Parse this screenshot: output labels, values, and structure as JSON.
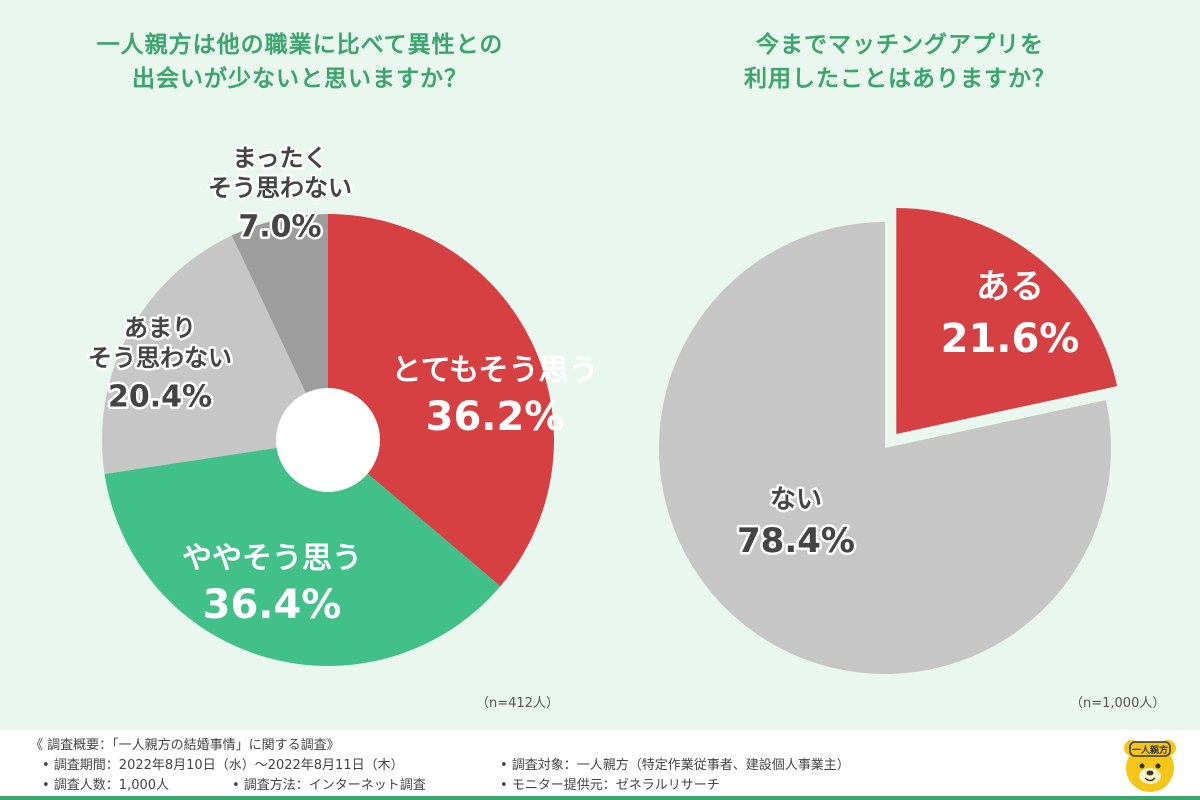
{
  "chart_data": [
    {
      "type": "pie",
      "title": "一人親方は他の職業に比べて異性との出会いが少ないと思いますか？",
      "title_lines": [
        "一人親方は他の職業に比べて異性との",
        "出会いが少ないと思いますか？"
      ],
      "sample_note": "（n=412人）",
      "donut": true,
      "slices": [
        {
          "label_lines": [
            "とてもそう思う"
          ],
          "value": 36.2,
          "value_text": "36.2%",
          "color": "#d64042",
          "text_style": "white"
        },
        {
          "label_lines": [
            "ややそう思う"
          ],
          "value": 36.4,
          "value_text": "36.4%",
          "color": "#41c08a",
          "text_style": "white"
        },
        {
          "label_lines": [
            "あまり",
            "そう思わない"
          ],
          "value": 20.4,
          "value_text": "20.4%",
          "color": "#c6c6c6",
          "text_style": "dark"
        },
        {
          "label_lines": [
            "まったく",
            "そう思わない"
          ],
          "value": 7.0,
          "value_text": "7.0%",
          "color": "#9d9d9d",
          "text_style": "dark"
        }
      ]
    },
    {
      "type": "pie",
      "title": "今までマッチングアプリを利用したことはありますか？",
      "title_lines": [
        "今までマッチングアプリを",
        "利用したことはありますか？"
      ],
      "sample_note": "（n=1,000人）",
      "donut": false,
      "slices": [
        {
          "label_lines": [
            "ある"
          ],
          "value": 21.6,
          "value_text": "21.6%",
          "color": "#d64042",
          "text_style": "white",
          "exploded": true
        },
        {
          "label_lines": [
            "ない"
          ],
          "value": 78.4,
          "value_text": "78.4%",
          "color": "#c6c6c6",
          "text_style": "dark"
        }
      ]
    }
  ],
  "footer": {
    "summary": "《 調査概要：「一人親方の結婚事情」に関する調査》",
    "period": "• 調査期間：2022年8月10日（水）〜2022年8月11日（木）",
    "count": "• 調査人数：1,000人",
    "method": "• 調査方法：インターネット調査",
    "target": "• 調査対象：一人親方（特定作業従事者、建設個人事業主）",
    "provider": "• モニター提供元：ゼネラルリサーチ",
    "logo_text": "一人親方"
  }
}
